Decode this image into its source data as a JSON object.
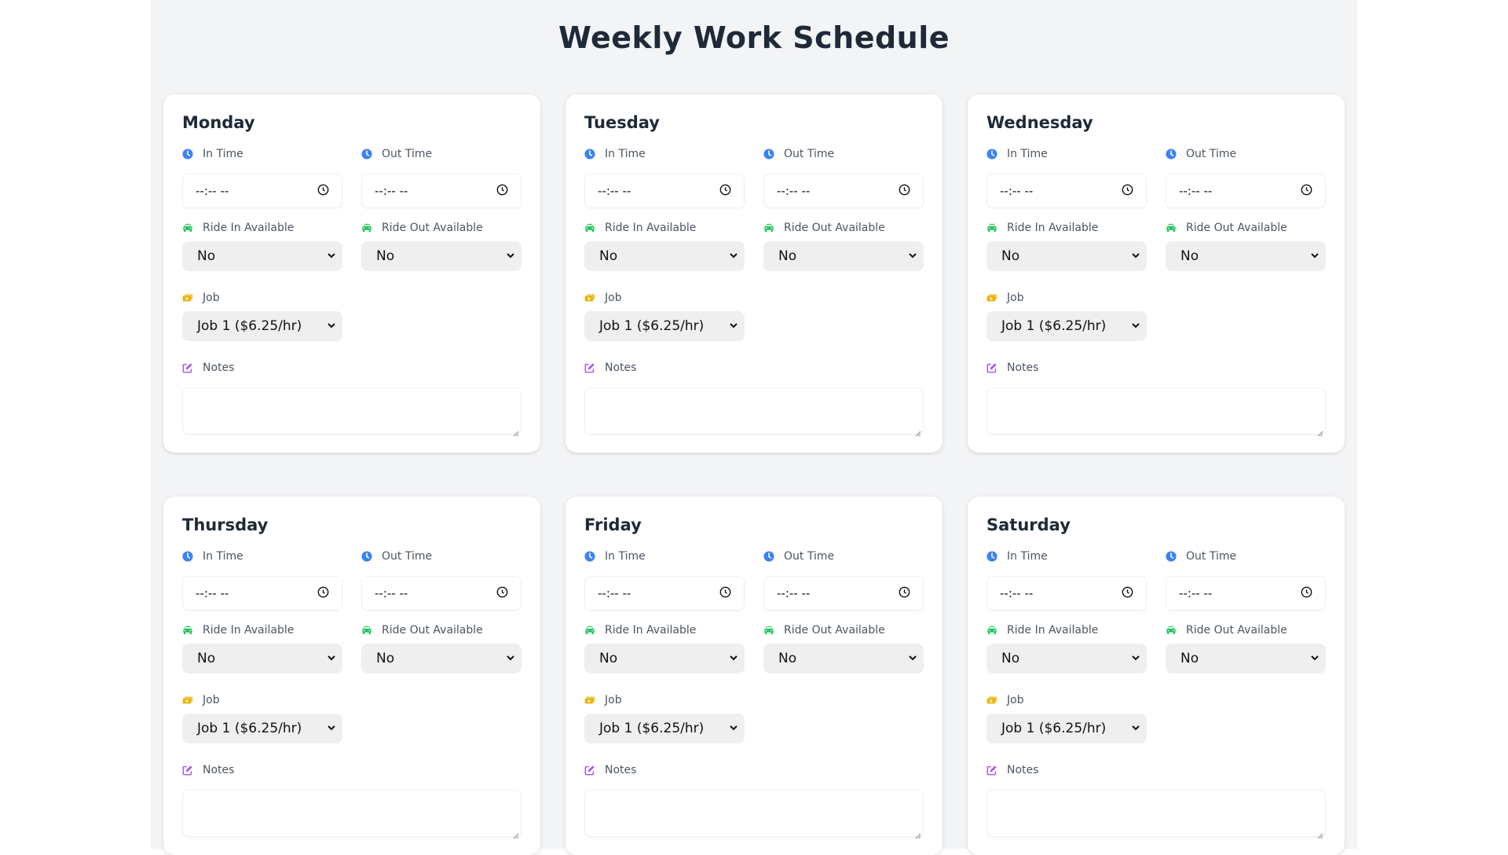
{
  "page": {
    "title": "Weekly Work Schedule"
  },
  "labels": {
    "in_time": "In Time",
    "out_time": "Out Time",
    "ride_in": "Ride In Available",
    "ride_out": "Ride Out Available",
    "job": "Job",
    "notes": "Notes"
  },
  "time_placeholder": "--:-- --",
  "icons": {
    "time": "clock-icon",
    "ride": "car-icon",
    "job": "money-bill-icon",
    "notes": "edit-icon",
    "time_picker": "clock-outline-icon",
    "select": "chevron-down-icon"
  },
  "colors": {
    "clock": "#3b82f6",
    "car": "#22c55e",
    "money": "#eab308",
    "notes": "#a855f7"
  },
  "days": [
    {
      "name": "Monday",
      "in_time": "--:-- --",
      "out_time": "--:-- --",
      "ride_in": "No",
      "ride_out": "No",
      "job": "Job 1 ($6.25/hr)",
      "notes": ""
    },
    {
      "name": "Tuesday",
      "in_time": "--:-- --",
      "out_time": "--:-- --",
      "ride_in": "No",
      "ride_out": "No",
      "job": "Job 1 ($6.25/hr)",
      "notes": ""
    },
    {
      "name": "Wednesday",
      "in_time": "--:-- --",
      "out_time": "--:-- --",
      "ride_in": "No",
      "ride_out": "No",
      "job": "Job 1 ($6.25/hr)",
      "notes": ""
    },
    {
      "name": "Thursday",
      "in_time": "--:-- --",
      "out_time": "--:-- --",
      "ride_in": "No",
      "ride_out": "No",
      "job": "Job 1 ($6.25/hr)",
      "notes": ""
    },
    {
      "name": "Friday",
      "in_time": "--:-- --",
      "out_time": "--:-- --",
      "ride_in": "No",
      "ride_out": "No",
      "job": "Job 1 ($6.25/hr)",
      "notes": ""
    },
    {
      "name": "Saturday",
      "in_time": "--:-- --",
      "out_time": "--:-- --",
      "ride_in": "No",
      "ride_out": "No",
      "job": "Job 1 ($6.25/hr)",
      "notes": ""
    }
  ]
}
